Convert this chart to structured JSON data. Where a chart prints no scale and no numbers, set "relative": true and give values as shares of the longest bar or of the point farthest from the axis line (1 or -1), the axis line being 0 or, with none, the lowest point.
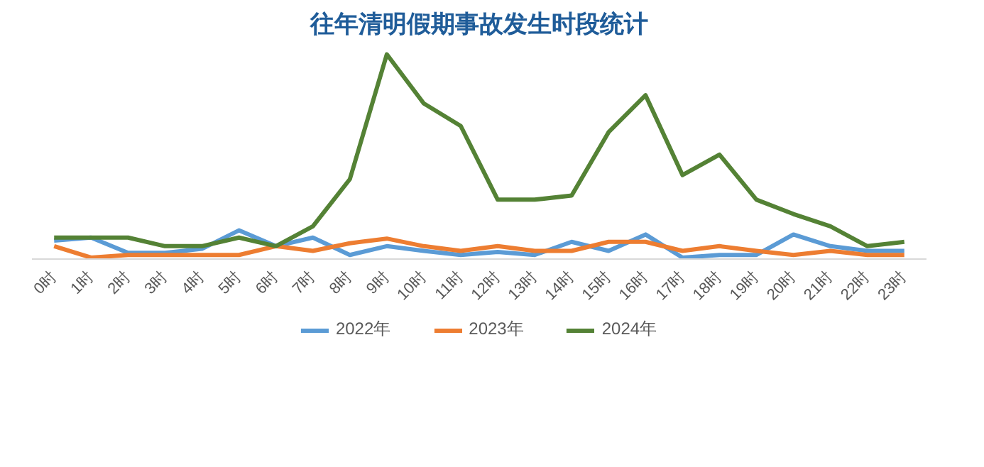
{
  "chart_data": {
    "type": "line",
    "title": "往年清明假期事故发生时段统计",
    "relative": true,
    "legend": "bottom",
    "grid": false,
    "marker": "none",
    "line_style": "solid",
    "categories": [
      "0时",
      "1时",
      "2时",
      "3时",
      "4时",
      "5时",
      "6时",
      "7时",
      "8时",
      "9时",
      "10时",
      "11时",
      "12时",
      "13时",
      "14时",
      "15时",
      "16时",
      "17时",
      "18时",
      "19时",
      "20时",
      "21时",
      "22时",
      "23时"
    ],
    "series": [
      {
        "name": "2022年",
        "color": "#5b9bd5",
        "values": [
          0.09,
          0.105,
          0.03,
          0.03,
          0.05,
          0.14,
          0.063,
          0.105,
          0.02,
          0.063,
          0.04,
          0.02,
          0.035,
          0.02,
          0.084,
          0.04,
          0.12,
          0.007,
          0.02,
          0.02,
          0.12,
          0.063,
          0.04,
          0.04
        ]
      },
      {
        "name": "2023年",
        "color": "#ed7d31",
        "values": [
          0.063,
          0.007,
          0.02,
          0.02,
          0.02,
          0.02,
          0.063,
          0.04,
          0.077,
          0.1,
          0.063,
          0.04,
          0.063,
          0.04,
          0.04,
          0.084,
          0.084,
          0.04,
          0.063,
          0.04,
          0.02,
          0.04,
          0.02,
          0.02
        ]
      },
      {
        "name": "2024年",
        "color": "#548235",
        "values": [
          0.105,
          0.105,
          0.105,
          0.063,
          0.063,
          0.105,
          0.063,
          0.16,
          0.39,
          1,
          0.76,
          0.65,
          0.29,
          0.29,
          0.31,
          0.62,
          0.8,
          0.41,
          0.51,
          0.29,
          0.22,
          0.16,
          0.063,
          0.084
        ]
      }
    ]
  }
}
